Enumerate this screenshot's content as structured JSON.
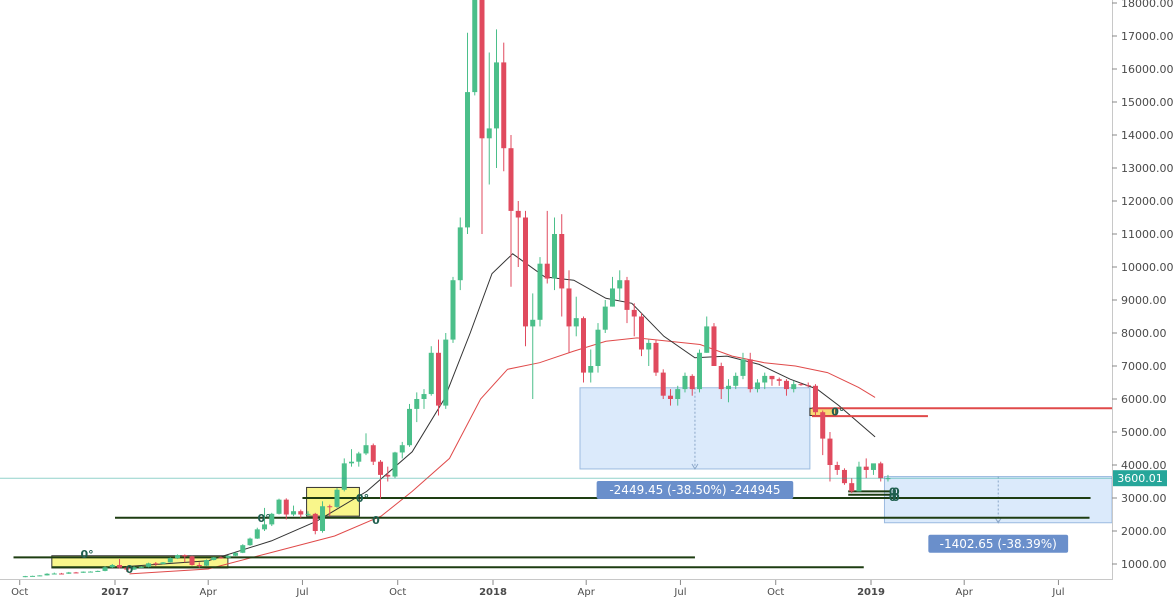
{
  "chart_data": {
    "type": "candlestick",
    "timeframe": "weekly",
    "ylim": [
      900,
      18300
    ],
    "y_ticks": [
      "1000.00",
      "2000.00",
      "3000.00",
      "4000.00",
      "5000.00",
      "6000.00",
      "7000.00",
      "8000.00",
      "9000.00",
      "10000.00",
      "11000.00",
      "12000.00",
      "13000.00",
      "14000.00",
      "15000.00",
      "16000.00",
      "17000.00",
      "18000.00"
    ],
    "x_ticks": [
      {
        "label": "Oct",
        "date": "2016-10-01",
        "bold": false
      },
      {
        "label": "2017",
        "date": "2017-01-01",
        "bold": true
      },
      {
        "label": "Apr",
        "date": "2017-04-01",
        "bold": false
      },
      {
        "label": "Jul",
        "date": "2017-07-01",
        "bold": false
      },
      {
        "label": "Oct",
        "date": "2017-10-01",
        "bold": false
      },
      {
        "label": "2018",
        "date": "2018-01-01",
        "bold": true
      },
      {
        "label": "Apr",
        "date": "2018-04-01",
        "bold": false
      },
      {
        "label": "Jul",
        "date": "2018-07-01",
        "bold": false
      },
      {
        "label": "Oct",
        "date": "2018-10-01",
        "bold": false
      },
      {
        "label": "2019",
        "date": "2019-01-01",
        "bold": true
      },
      {
        "label": "Apr",
        "date": "2019-04-01",
        "bold": false
      },
      {
        "label": "Jul",
        "date": "2019-07-01",
        "bold": false
      }
    ],
    "x_range": [
      "2016-09-24",
      "2019-09-15"
    ],
    "colors": {
      "up": "#4bbf8a",
      "down": "#e04a5e",
      "ma_fast": "#333333",
      "ma_slow": "#e04a4a",
      "price_line": "#26a69a",
      "measure_fill": "#dbeafb",
      "measure_label": "#6a8fcb",
      "support": "#1e3d12",
      "highlight": "#f7f25a"
    },
    "candles": [
      [
        "2016-10-03",
        610,
        640,
        600,
        632
      ],
      [
        "2016-10-10",
        632,
        645,
        625,
        640
      ],
      [
        "2016-10-17",
        640,
        660,
        630,
        655
      ],
      [
        "2016-10-24",
        655,
        720,
        650,
        705
      ],
      [
        "2016-10-31",
        705,
        740,
        690,
        712
      ],
      [
        "2016-11-07",
        712,
        730,
        690,
        705
      ],
      [
        "2016-11-14",
        705,
        760,
        700,
        745
      ],
      [
        "2016-11-21",
        745,
        760,
        720,
        735
      ],
      [
        "2016-11-28",
        735,
        775,
        730,
        768
      ],
      [
        "2016-12-05",
        768,
        780,
        750,
        770
      ],
      [
        "2016-12-12",
        770,
        800,
        760,
        790
      ],
      [
        "2016-12-19",
        790,
        930,
        780,
        900
      ],
      [
        "2016-12-26",
        900,
        1000,
        880,
        970
      ],
      [
        "2017-01-02",
        970,
        1150,
        860,
        890
      ],
      [
        "2017-01-09",
        890,
        930,
        760,
        830
      ],
      [
        "2017-01-16",
        830,
        930,
        820,
        900
      ],
      [
        "2017-01-23",
        900,
        930,
        880,
        915
      ],
      [
        "2017-01-30",
        915,
        1040,
        900,
        1020
      ],
      [
        "2017-02-06",
        1020,
        1060,
        940,
        1000
      ],
      [
        "2017-02-13",
        1000,
        1060,
        990,
        1050
      ],
      [
        "2017-02-20",
        1050,
        1200,
        1040,
        1180
      ],
      [
        "2017-02-27",
        1180,
        1290,
        1150,
        1270
      ],
      [
        "2017-03-06",
        1270,
        1290,
        1050,
        1230
      ],
      [
        "2017-03-13",
        1230,
        1250,
        950,
        970
      ],
      [
        "2017-03-20",
        970,
        1050,
        890,
        950
      ],
      [
        "2017-03-27",
        950,
        1140,
        940,
        1120
      ],
      [
        "2017-04-03",
        1120,
        1210,
        1110,
        1200
      ],
      [
        "2017-04-10",
        1200,
        1230,
        1160,
        1190
      ],
      [
        "2017-04-17",
        1190,
        1260,
        1180,
        1250
      ],
      [
        "2017-04-24",
        1250,
        1350,
        1240,
        1340
      ],
      [
        "2017-05-01",
        1340,
        1600,
        1330,
        1570
      ],
      [
        "2017-05-08",
        1570,
        1800,
        1550,
        1770
      ],
      [
        "2017-05-15",
        1770,
        2100,
        1760,
        2050
      ],
      [
        "2017-05-22",
        2050,
        2700,
        2000,
        2200
      ],
      [
        "2017-05-29",
        2200,
        2550,
        2150,
        2520
      ],
      [
        "2017-06-05",
        2520,
        2980,
        2500,
        2950
      ],
      [
        "2017-06-12",
        2950,
        2990,
        2350,
        2500
      ],
      [
        "2017-06-19",
        2500,
        2770,
        2450,
        2600
      ],
      [
        "2017-06-26",
        2600,
        2650,
        2400,
        2500
      ],
      [
        "2017-07-03",
        2500,
        2600,
        2450,
        2520
      ],
      [
        "2017-07-10",
        2520,
        2550,
        1900,
        2000
      ],
      [
        "2017-07-17",
        2000,
        2900,
        1950,
        2750
      ],
      [
        "2017-07-24",
        2750,
        2800,
        2450,
        2730
      ],
      [
        "2017-07-31",
        2730,
        3300,
        2700,
        3250
      ],
      [
        "2017-08-07",
        3250,
        4200,
        3200,
        4050
      ],
      [
        "2017-08-14",
        4050,
        4480,
        3950,
        4100
      ],
      [
        "2017-08-21",
        4100,
        4400,
        3950,
        4350
      ],
      [
        "2017-08-28",
        4350,
        4960,
        4300,
        4600
      ],
      [
        "2017-09-04",
        4600,
        4650,
        4000,
        4100
      ],
      [
        "2017-09-11",
        4100,
        4150,
        2980,
        3700
      ],
      [
        "2017-09-18",
        3700,
        3950,
        3500,
        3650
      ],
      [
        "2017-09-25",
        3650,
        4400,
        3600,
        4380
      ],
      [
        "2017-10-02",
        4380,
        4700,
        4200,
        4600
      ],
      [
        "2017-10-09",
        4600,
        5850,
        4550,
        5700
      ],
      [
        "2017-10-16",
        5700,
        6200,
        5300,
        6000
      ],
      [
        "2017-10-23",
        6000,
        6300,
        5700,
        6150
      ],
      [
        "2017-10-30",
        6150,
        7600,
        6100,
        7400
      ],
      [
        "2017-11-06",
        7400,
        7800,
        5500,
        5800
      ],
      [
        "2017-11-13",
        5800,
        8000,
        5700,
        7800
      ],
      [
        "2017-11-20",
        7800,
        9700,
        7700,
        9600
      ],
      [
        "2017-11-27",
        9600,
        11500,
        9300,
        11200
      ],
      [
        "2017-12-04",
        11200,
        17100,
        11000,
        15300
      ],
      [
        "2017-12-11",
        15300,
        19900,
        15200,
        19100
      ],
      [
        "2017-12-18",
        19100,
        19500,
        11000,
        13900
      ],
      [
        "2017-12-25",
        13900,
        16500,
        12500,
        14200
      ],
      [
        "2018-01-01",
        14200,
        17200,
        13000,
        16200
      ],
      [
        "2018-01-08",
        16200,
        16800,
        12900,
        13600
      ],
      [
        "2018-01-15",
        13600,
        14000,
        9400,
        11700
      ],
      [
        "2018-01-22",
        11700,
        12000,
        10000,
        11500
      ],
      [
        "2018-01-29",
        11500,
        11700,
        7600,
        8200
      ],
      [
        "2018-02-05",
        8200,
        9200,
        6000,
        8400
      ],
      [
        "2018-02-12",
        8400,
        10300,
        8200,
        10100
      ],
      [
        "2018-02-19",
        10100,
        11700,
        9500,
        9650
      ],
      [
        "2018-02-26",
        9650,
        11500,
        9300,
        11000
      ],
      [
        "2018-03-05",
        11000,
        11600,
        8500,
        9350
      ],
      [
        "2018-03-12",
        9350,
        9900,
        7400,
        8200
      ],
      [
        "2018-03-19",
        8200,
        9100,
        7900,
        8450
      ],
      [
        "2018-03-26",
        8450,
        8500,
        6500,
        6800
      ],
      [
        "2018-04-02",
        6800,
        7500,
        6500,
        7000
      ],
      [
        "2018-04-09",
        7000,
        8300,
        6800,
        8100
      ],
      [
        "2018-04-16",
        8100,
        9000,
        8000,
        8800
      ],
      [
        "2018-04-23",
        8800,
        9700,
        8800,
        9350
      ],
      [
        "2018-04-30",
        9350,
        9900,
        9000,
        9600
      ],
      [
        "2018-05-07",
        9600,
        9700,
        8300,
        8700
      ],
      [
        "2018-05-14",
        8700,
        8900,
        7900,
        8500
      ],
      [
        "2018-05-21",
        8500,
        8600,
        7300,
        7500
      ],
      [
        "2018-05-28",
        7500,
        7800,
        7000,
        7700
      ],
      [
        "2018-06-04",
        7700,
        7800,
        6700,
        6800
      ],
      [
        "2018-06-11",
        6800,
        6900,
        6000,
        6100
      ],
      [
        "2018-06-18",
        6100,
        6300,
        5800,
        6000
      ],
      [
        "2018-06-25",
        6000,
        6400,
        5800,
        6300
      ],
      [
        "2018-07-02",
        6300,
        6800,
        6200,
        6700
      ],
      [
        "2018-07-09",
        6700,
        6750,
        6100,
        6300
      ],
      [
        "2018-07-16",
        6300,
        7500,
        6200,
        7400
      ],
      [
        "2018-07-23",
        7400,
        8500,
        7400,
        8200
      ],
      [
        "2018-07-30",
        8200,
        8300,
        7000,
        7000
      ],
      [
        "2018-08-06",
        7000,
        7100,
        6000,
        6300
      ],
      [
        "2018-08-13",
        6300,
        6600,
        5900,
        6400
      ],
      [
        "2018-08-20",
        6400,
        6800,
        6300,
        6700
      ],
      [
        "2018-08-27",
        6700,
        7400,
        6600,
        7200
      ],
      [
        "2018-09-03",
        7200,
        7400,
        6200,
        6300
      ],
      [
        "2018-09-10",
        6300,
        6600,
        6200,
        6500
      ],
      [
        "2018-09-17",
        6500,
        6800,
        6300,
        6700
      ],
      [
        "2018-09-24",
        6700,
        6700,
        6400,
        6600
      ],
      [
        "2018-10-01",
        6600,
        6650,
        6400,
        6550
      ],
      [
        "2018-10-08",
        6550,
        6600,
        6100,
        6300
      ],
      [
        "2018-10-15",
        6300,
        6550,
        6200,
        6450
      ],
      [
        "2018-10-22",
        6450,
        6500,
        6400,
        6420
      ],
      [
        "2018-10-29",
        6420,
        6500,
        6350,
        6400
      ],
      [
        "2018-11-05",
        6400,
        6450,
        5500,
        5600
      ],
      [
        "2018-11-12",
        5600,
        5650,
        4300,
        4800
      ],
      [
        "2018-11-19",
        4800,
        5000,
        3500,
        4000
      ],
      [
        "2018-11-26",
        4000,
        4100,
        3700,
        3850
      ],
      [
        "2018-12-03",
        3850,
        3900,
        3400,
        3450
      ],
      [
        "2018-12-10",
        3450,
        3600,
        3150,
        3200
      ],
      [
        "2018-12-17",
        3200,
        4100,
        3200,
        3950
      ],
      [
        "2018-12-24",
        3950,
        4200,
        3600,
        3850
      ],
      [
        "2018-12-31",
        3850,
        4000,
        3700,
        4050
      ],
      [
        "2019-01-07",
        4050,
        4100,
        3500,
        3600
      ],
      [
        "2019-01-14",
        3600,
        3700,
        3500,
        3600
      ]
    ],
    "ma_fast": [
      [
        "2017-01-01",
        900
      ],
      [
        "2017-04-01",
        1100
      ],
      [
        "2017-06-01",
        1700
      ],
      [
        "2017-07-15",
        2300
      ],
      [
        "2017-09-01",
        3200
      ],
      [
        "2017-10-15",
        4400
      ],
      [
        "2017-11-15",
        6000
      ],
      [
        "2017-12-10",
        8000
      ],
      [
        "2017-12-31",
        9800
      ],
      [
        "2018-01-20",
        10400
      ],
      [
        "2018-02-20",
        9700
      ],
      [
        "2018-03-20",
        9600
      ],
      [
        "2018-04-20",
        9050
      ],
      [
        "2018-05-15",
        8900
      ],
      [
        "2018-06-15",
        7900
      ],
      [
        "2018-07-15",
        7250
      ],
      [
        "2018-08-15",
        7300
      ],
      [
        "2018-09-15",
        7050
      ],
      [
        "2018-10-15",
        6600
      ],
      [
        "2018-11-10",
        6300
      ],
      [
        "2018-12-01",
        5800
      ],
      [
        "2019-01-05",
        4850
      ]
    ],
    "ma_slow": [
      [
        "2017-01-15",
        700
      ],
      [
        "2017-04-01",
        850
      ],
      [
        "2017-06-01",
        1350
      ],
      [
        "2017-08-01",
        1850
      ],
      [
        "2017-09-15",
        2450
      ],
      [
        "2017-10-15",
        3200
      ],
      [
        "2017-11-20",
        4200
      ],
      [
        "2017-12-20",
        6000
      ],
      [
        "2018-01-15",
        6900
      ],
      [
        "2018-02-15",
        7100
      ],
      [
        "2018-03-20",
        7450
      ],
      [
        "2018-04-20",
        7750
      ],
      [
        "2018-05-20",
        7850
      ],
      [
        "2018-06-20",
        7750
      ],
      [
        "2018-07-20",
        7650
      ],
      [
        "2018-08-20",
        7300
      ],
      [
        "2018-09-20",
        7100
      ],
      [
        "2018-10-20",
        7000
      ],
      [
        "2018-11-20",
        6800
      ],
      [
        "2018-12-20",
        6350
      ],
      [
        "2019-01-05",
        6050
      ]
    ],
    "price_label": "3600.01",
    "price_value": 3600.01,
    "support_lines": [
      {
        "from": "2016-09-25",
        "to": "2018-07-15",
        "value": 1200
      },
      {
        "from": "2016-11-01",
        "to": "2018-12-25",
        "value": 900
      },
      {
        "from": "2017-01-01",
        "to": "2019-07-31",
        "value": 2400
      },
      {
        "from": "2017-07-01",
        "to": "2019-08-01",
        "value": 3000
      },
      {
        "from": "2018-12-10",
        "to": "2019-01-20",
        "value": 3200
      },
      {
        "from": "2018-12-10",
        "to": "2019-01-20",
        "value": 3100
      }
    ],
    "resistance_lines": [
      {
        "from": "2018-11-05",
        "to": "2019-09-15",
        "value": 5720,
        "color": "#e04a4a"
      },
      {
        "from": "2018-11-05",
        "to": "2019-02-25",
        "value": 5480,
        "color": "#e04a4a"
      }
    ],
    "highlight_boxes": [
      {
        "from": "2016-11-01",
        "to": "2017-04-20",
        "low": 880,
        "high": 1250,
        "color": "#f7f25a"
      },
      {
        "from": "2017-07-05",
        "to": "2017-08-25",
        "low": 2450,
        "high": 3320,
        "color": "#f7f25a"
      },
      {
        "from": "2018-11-03",
        "to": "2018-11-28",
        "low": 5500,
        "high": 5720,
        "color": "#f7c93a"
      }
    ],
    "measure_ranges": [
      {
        "from": "2018-03-26",
        "to": "2018-11-03",
        "low": 3880,
        "high": 6340,
        "label": "-2449.45 (-38.50%) -244945"
      },
      {
        "from": "2019-01-14",
        "to": "2019-09-15",
        "low": 2250,
        "high": 3650,
        "label": "-1402.65 (-38.39%)"
      }
    ],
    "level_markers": [
      {
        "label": "0°",
        "date": "2016-12-05",
        "value": 1300
      },
      {
        "label": "0",
        "date": "2017-01-15",
        "value": 850
      },
      {
        "label": "0°",
        "date": "2017-05-25",
        "value": 2400
      },
      {
        "label": "0°",
        "date": "2017-08-28",
        "value": 3000
      },
      {
        "label": "0",
        "date": "2017-09-10",
        "value": 2340
      },
      {
        "label": "0°",
        "date": "2018-11-30",
        "value": 5620
      },
      {
        "label": "0",
        "date": "2019-01-22",
        "value": 3200
      },
      {
        "label": "0",
        "date": "2019-01-22",
        "value": 3030
      },
      {
        "label": "0",
        "date": "2019-01-25",
        "value": 3200
      },
      {
        "label": "0",
        "date": "2019-01-25",
        "value": 3030
      }
    ]
  }
}
